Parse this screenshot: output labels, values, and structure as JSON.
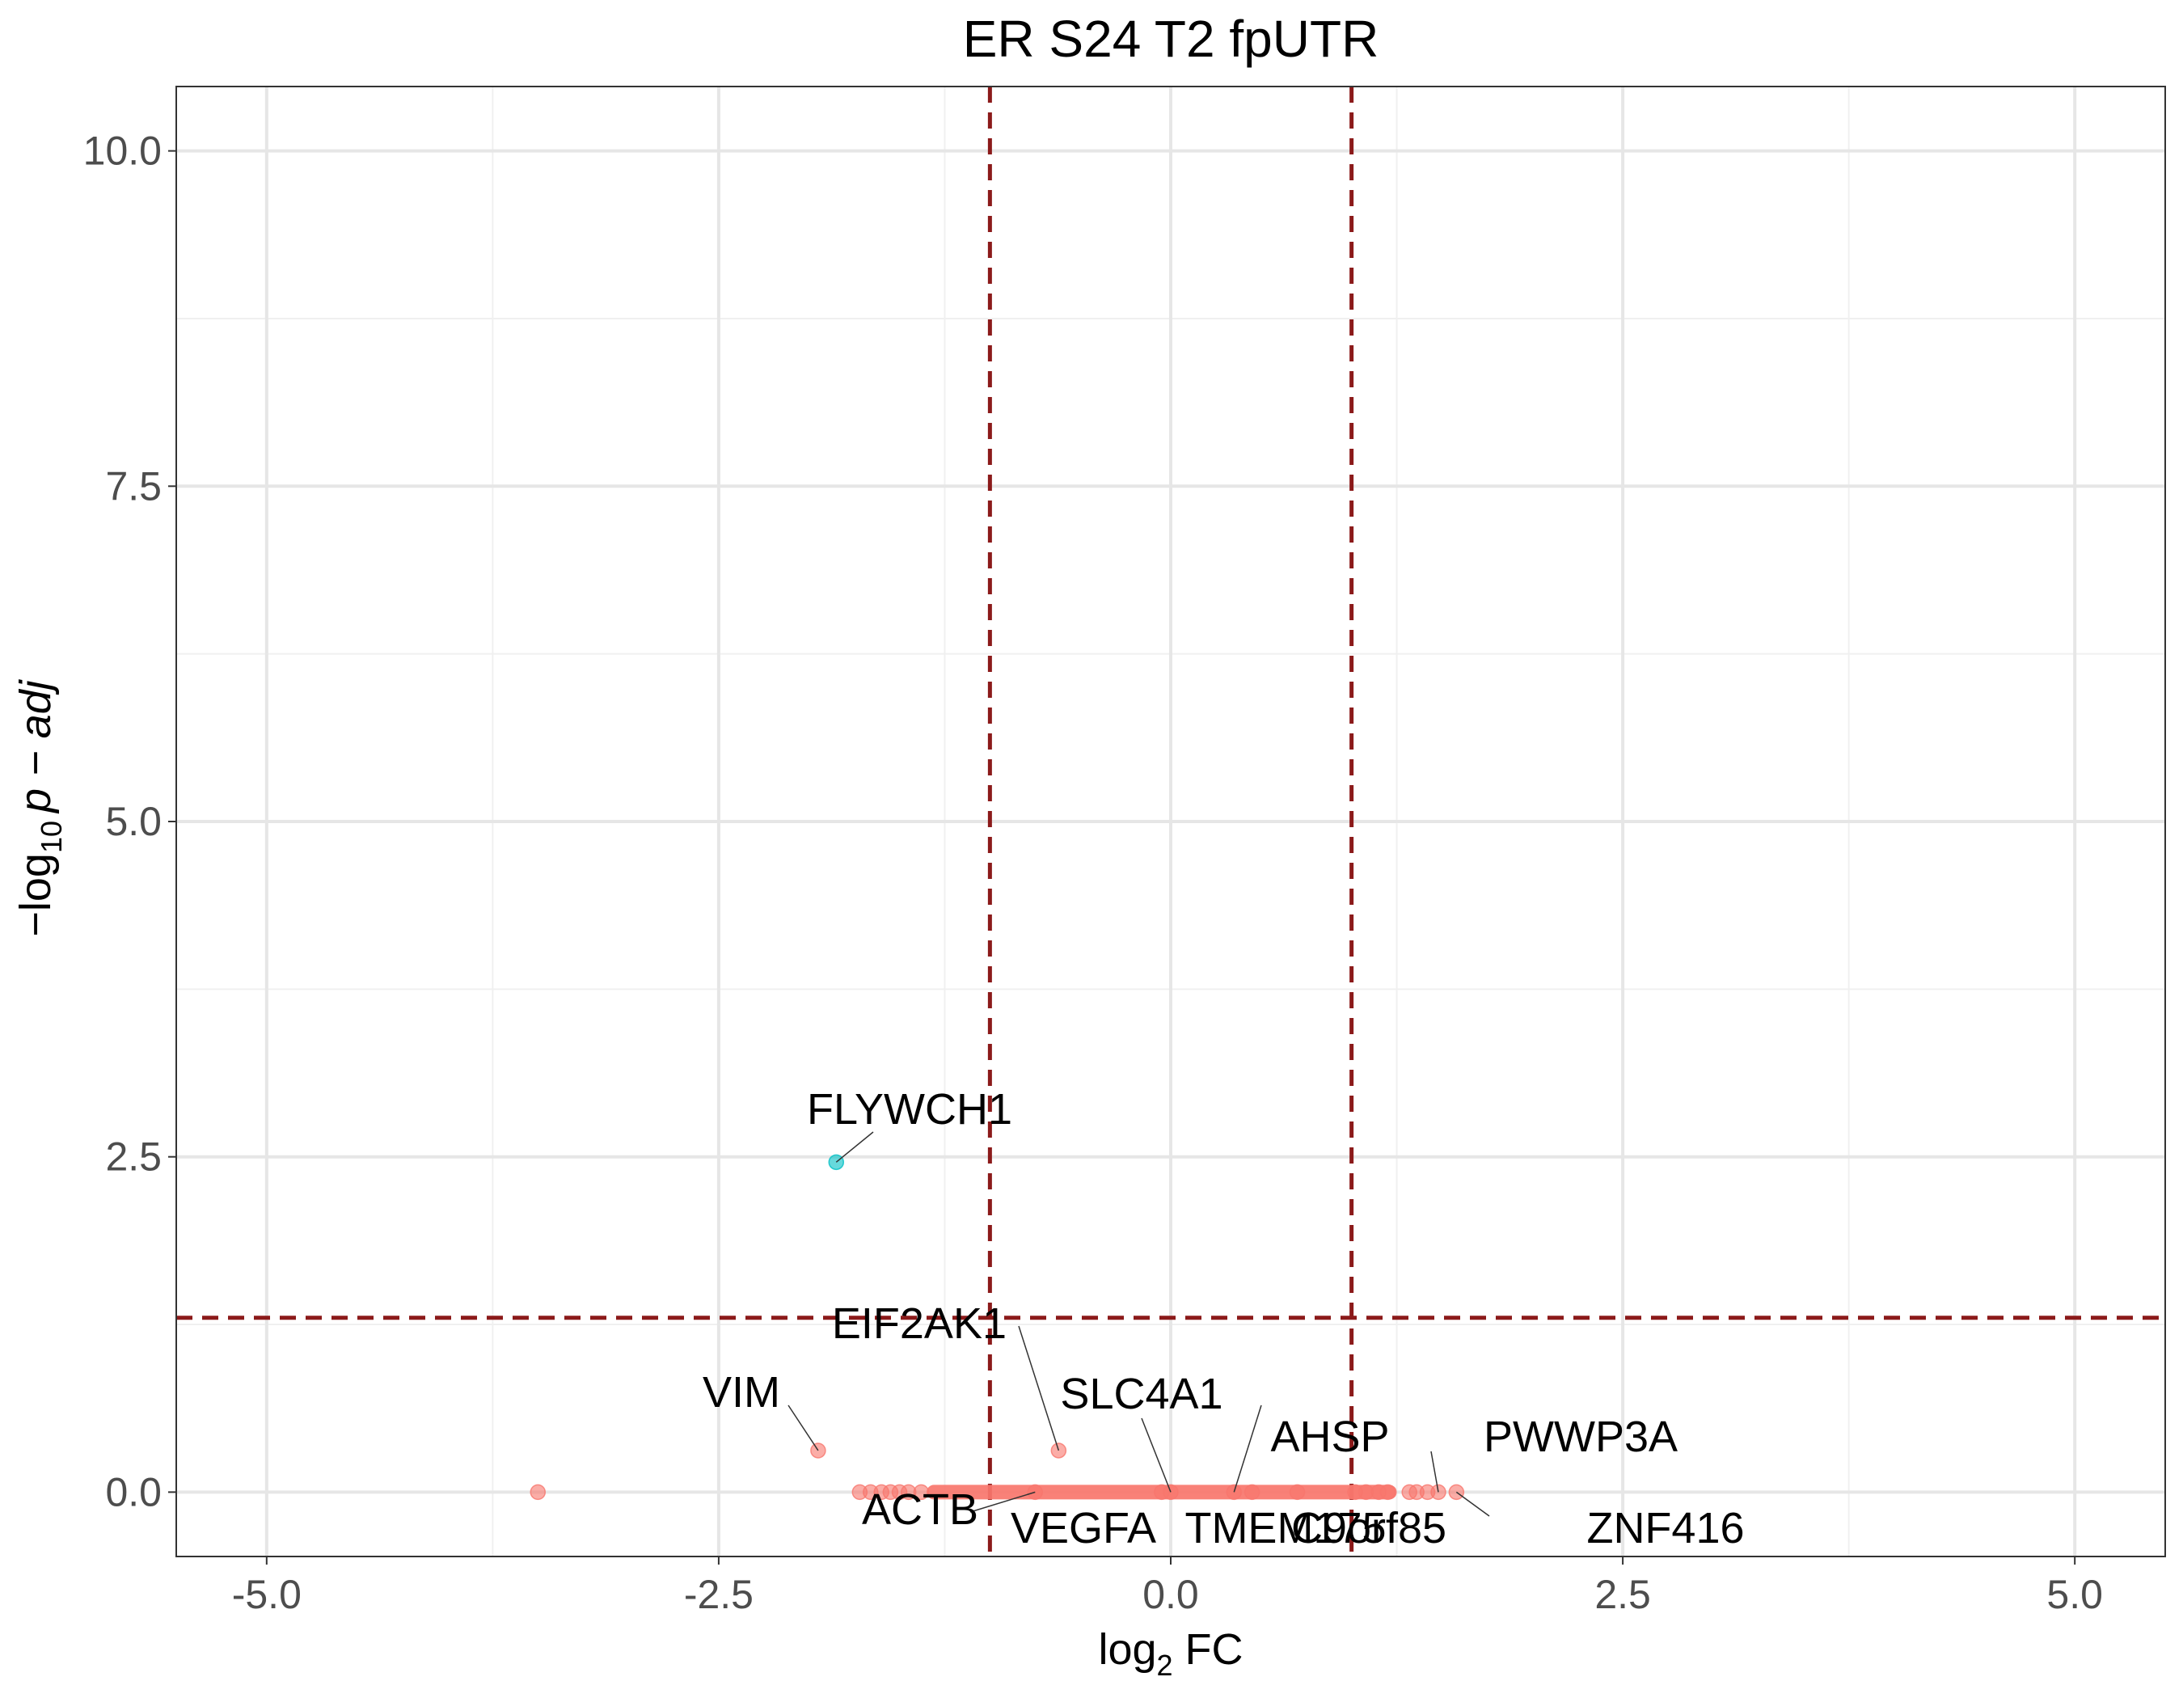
{
  "chart_data": {
    "type": "scatter",
    "title": "ER S24 T2 fpUTR",
    "xlabel": {
      "prefix": "log",
      "sub": "2",
      "suffix": " FC"
    },
    "ylabel": {
      "prefix": "−log",
      "sub": "10",
      "suffix": "p − adj"
    },
    "xlim": [
      -5.5,
      5.5
    ],
    "ylim": [
      -0.48,
      10.48
    ],
    "x_ticks": [
      -5.0,
      -2.5,
      0.0,
      2.5,
      5.0
    ],
    "x_tick_labels": [
      "-5.0",
      "-2.5",
      "0.0",
      "2.5",
      "5.0"
    ],
    "y_ticks": [
      0.0,
      2.5,
      5.0,
      7.5,
      10.0
    ],
    "y_tick_labels": [
      "0.0",
      "2.5",
      "5.0",
      "7.5",
      "10.0"
    ],
    "grid": true,
    "threshold_lines": {
      "x": [
        -1,
        1
      ],
      "y": 1.3,
      "color": "#8b1a1a"
    },
    "colors": {
      "not_significant": "#f8766d",
      "significant": "#00bfc4"
    },
    "labeled_points": [
      {
        "gene": "FLYWCH1",
        "x": -1.85,
        "y": 2.46,
        "significant": true
      },
      {
        "gene": "VIM",
        "x": -1.95,
        "y": 0.31,
        "significant": false
      },
      {
        "gene": "EIF2AK1",
        "x": -0.62,
        "y": 0.31,
        "significant": false
      },
      {
        "gene": "SLC4A1",
        "x": 0.0,
        "y": 0.0,
        "significant": false
      },
      {
        "gene": "AHSP",
        "x": 0.35,
        "y": 0.0,
        "significant": false
      },
      {
        "gene": "PWWP3A",
        "x": 1.48,
        "y": 0.0,
        "significant": false
      },
      {
        "gene": "ACTB",
        "x": -0.75,
        "y": 0.0,
        "significant": false
      },
      {
        "gene": "VEGFA",
        "x": -0.05,
        "y": 0.0,
        "significant": false
      },
      {
        "gene": "TMEM175",
        "x": 0.45,
        "y": 0.0,
        "significant": false
      },
      {
        "gene": "C9orf85",
        "x": 0.7,
        "y": 0.0,
        "significant": false
      },
      {
        "gene": "ZNF416",
        "x": 1.58,
        "y": 0.0,
        "significant": false
      }
    ],
    "other_points": [
      {
        "x": -3.5,
        "y": 0.0
      },
      {
        "x": -1.72,
        "y": 0.0
      },
      {
        "x": -1.66,
        "y": 0.0
      },
      {
        "x": -1.6,
        "y": 0.0
      },
      {
        "x": -1.55,
        "y": 0.0
      },
      {
        "x": -1.5,
        "y": 0.0
      },
      {
        "x": -1.45,
        "y": 0.0
      },
      {
        "x": -1.38,
        "y": 0.0
      },
      {
        "x": 1.02,
        "y": 0.0
      },
      {
        "x": 1.08,
        "y": 0.0
      },
      {
        "x": 1.15,
        "y": 0.0
      },
      {
        "x": 1.2,
        "y": 0.0
      },
      {
        "x": 1.32,
        "y": 0.0
      },
      {
        "x": 1.36,
        "y": 0.0
      },
      {
        "x": 1.42,
        "y": 0.0
      }
    ],
    "dense_band": {
      "x_range": [
        -1.35,
        1.25
      ],
      "y": 0.0
    }
  }
}
